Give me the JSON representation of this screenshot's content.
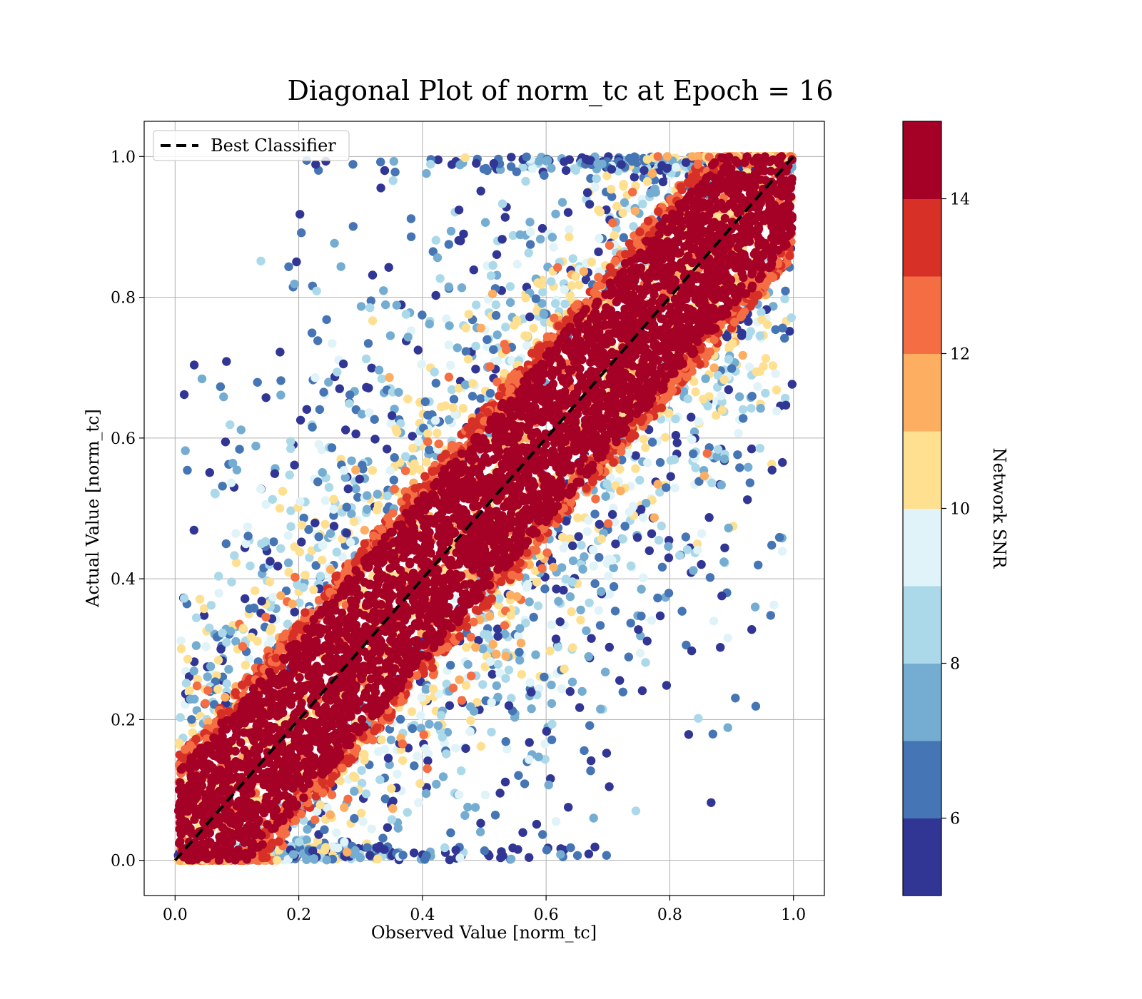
{
  "chart_data": {
    "type": "scatter",
    "title": "Diagonal Plot of norm_tc at Epoch = 16",
    "xlabel": "Observed Value [norm_tc]",
    "ylabel": "Actual Value [norm_tc]",
    "xlim": [
      -0.05,
      1.05
    ],
    "ylim": [
      -0.05,
      1.05
    ],
    "xticks": [
      "0.0",
      "0.2",
      "0.4",
      "0.6",
      "0.8",
      "1.0"
    ],
    "yticks": [
      "0.0",
      "0.2",
      "0.4",
      "0.6",
      "0.8",
      "1.0"
    ],
    "grid": true,
    "legend": {
      "placement": "top-left",
      "entries": [
        {
          "label": "Best Classifier",
          "style": "black dashed line"
        }
      ]
    },
    "reference_line": {
      "name": "Best Classifier",
      "x": [
        0.0,
        1.0
      ],
      "y": [
        0.0,
        1.0
      ],
      "color": "#000000",
      "dash": true
    },
    "colorbar": {
      "label": "Network SNR",
      "range": [
        5,
        15
      ],
      "ticks": [
        "6",
        "8",
        "10",
        "12",
        "14"
      ],
      "colors": [
        "#313695",
        "#4575b4",
        "#74add1",
        "#abd9e9",
        "#e0f3f8",
        "#fee090",
        "#fdae61",
        "#f46d43",
        "#d73027",
        "#a50026"
      ]
    },
    "distribution": {
      "description_values": "norm_tc observed vs actual; high-SNR points (>14) clustered along diagonal band, low-SNR points spread in upper-left and lower-right",
      "high_snr_band_halfwidth": 0.12,
      "x_range": [
        0.0,
        1.0
      ],
      "y_range": [
        0.0,
        1.0
      ]
    }
  }
}
